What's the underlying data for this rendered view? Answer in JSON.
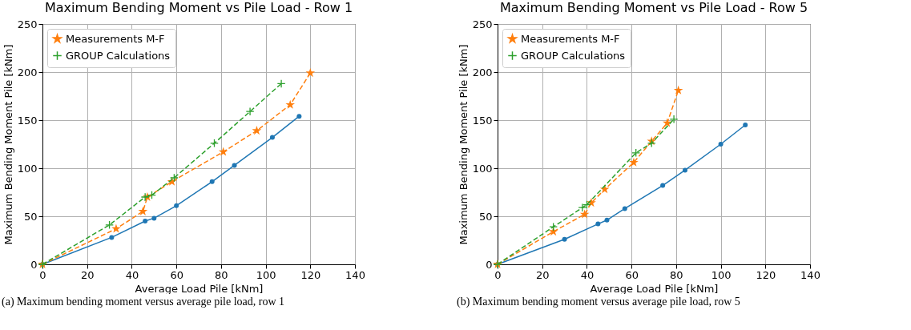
{
  "chart_data": [
    {
      "type": "line",
      "title": "Maximum Bending Moment vs Pile Load - Row 1",
      "xlabel": "Average Load Pile [kNm]",
      "ylabel": "Maximum Bending Moment Pile [kNm]",
      "annotations": [
        "(a) Maximum bending moment versus average pile load, row 1"
      ],
      "xlim": [
        0,
        140
      ],
      "ylim": [
        0,
        250
      ],
      "xticks": [
        0,
        20,
        40,
        60,
        80,
        100,
        120,
        140
      ],
      "yticks": [
        0,
        50,
        100,
        150,
        200,
        250
      ],
      "grid": true,
      "legend": "top left",
      "series": [
        {
          "color": "#1f77b4",
          "marker": "circle",
          "line_style": "solid",
          "x": [
            0,
            31,
            46,
            50,
            60,
            76,
            86,
            103,
            115
          ],
          "values": [
            0,
            28,
            45,
            48,
            61,
            86,
            103,
            132,
            154
          ]
        },
        {
          "name": "Measurements M-F",
          "color": "#ff7f0e",
          "marker": "star",
          "line_style": "dashed",
          "x": [
            0,
            33,
            45,
            47,
            58,
            81,
            96,
            111,
            120
          ],
          "values": [
            0,
            37,
            55,
            70,
            86,
            117,
            139,
            166,
            199
          ]
        },
        {
          "name": "GROUP Calculations",
          "color": "#2ca02c",
          "marker": "cross",
          "line_style": "dashed",
          "x": [
            0,
            30,
            46,
            49,
            59,
            77,
            93,
            107
          ],
          "values": [
            0,
            41,
            70,
            72,
            90,
            126,
            159,
            188
          ]
        }
      ]
    },
    {
      "type": "line",
      "title": "Maximum Bending Moment vs Pile Load - Row 5",
      "xlabel": "Average Load Pile [kNm]",
      "ylabel": "Maximum Bending Moment Pile [kNm]",
      "annotations": [
        "(b) Maximum bending moment versus average pile load, row 5"
      ],
      "xlim": [
        0,
        140
      ],
      "ylim": [
        0,
        250
      ],
      "xticks": [
        0,
        20,
        40,
        60,
        80,
        100,
        120,
        140
      ],
      "yticks": [
        0,
        50,
        100,
        150,
        200,
        250
      ],
      "grid": true,
      "legend": "top left",
      "series": [
        {
          "color": "#1f77b4",
          "marker": "circle",
          "line_style": "solid",
          "x": [
            0,
            30,
            45,
            49,
            57,
            74,
            84,
            100,
            111
          ],
          "values": [
            0,
            26,
            42,
            46,
            58,
            82,
            98,
            125,
            145
          ]
        },
        {
          "name": "Measurements M-F",
          "color": "#ff7f0e",
          "marker": "star",
          "line_style": "dashed",
          "x": [
            0,
            25,
            39,
            42,
            48,
            61,
            69,
            76,
            81
          ],
          "values": [
            0,
            34,
            52,
            64,
            78,
            106,
            128,
            147,
            181
          ]
        },
        {
          "name": "GROUP Calculations",
          "color": "#2ca02c",
          "marker": "cross",
          "line_style": "dashed",
          "x": [
            0,
            25,
            38,
            40,
            62,
            69,
            79
          ],
          "values": [
            0,
            39,
            59,
            62,
            116,
            126,
            151
          ]
        }
      ]
    }
  ]
}
